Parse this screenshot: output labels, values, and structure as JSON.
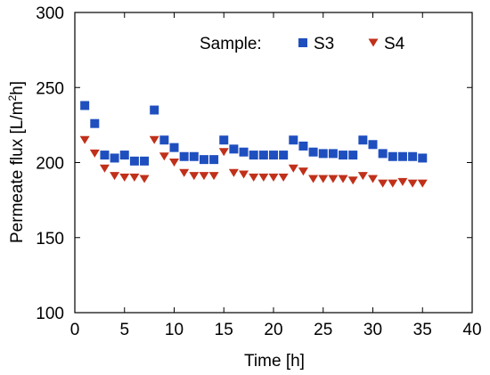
{
  "chart_data": {
    "type": "scatter",
    "xlabel": "Time [h]",
    "ylabel_prefix": "Permeate flux [L/m",
    "ylabel_sup": "2",
    "ylabel_suffix": "h]",
    "xlim": [
      0,
      40
    ],
    "ylim": [
      100,
      300
    ],
    "xticks": [
      0,
      5,
      10,
      15,
      20,
      25,
      30,
      35,
      40
    ],
    "yticks": [
      100,
      150,
      200,
      250,
      300
    ],
    "grid": false,
    "legend": {
      "title": "Sample:",
      "placement": "top-right"
    },
    "series": [
      {
        "name": "S3",
        "marker": "square",
        "color": "#1f4fbf",
        "x": [
          1,
          2,
          3,
          4,
          5,
          6,
          7,
          8,
          9,
          10,
          11,
          12,
          13,
          14,
          15,
          16,
          17,
          18,
          19,
          20,
          21,
          22,
          23,
          24,
          25,
          26,
          27,
          28,
          29,
          30,
          31,
          32,
          33,
          34,
          35
        ],
        "y": [
          238,
          226,
          205,
          203,
          205,
          201,
          201,
          235,
          215,
          210,
          204,
          204,
          202,
          202,
          215,
          209,
          207,
          205,
          205,
          205,
          205,
          215,
          211,
          207,
          206,
          206,
          205,
          205,
          215,
          212,
          206,
          204,
          204,
          204,
          203
        ]
      },
      {
        "name": "S4",
        "marker": "triangle-down",
        "color": "#c0301a",
        "x": [
          1,
          2,
          3,
          4,
          5,
          6,
          7,
          8,
          9,
          10,
          11,
          12,
          13,
          14,
          15,
          16,
          17,
          18,
          19,
          20,
          21,
          22,
          23,
          24,
          25,
          26,
          27,
          28,
          29,
          30,
          31,
          32,
          33,
          34,
          35
        ],
        "y": [
          215,
          206,
          196,
          191,
          190,
          190,
          189,
          215,
          204,
          200,
          193,
          191,
          191,
          191,
          207,
          193,
          192,
          190,
          190,
          190,
          190,
          196,
          194,
          189,
          189,
          189,
          189,
          188,
          191,
          189,
          186,
          186,
          187,
          186,
          186
        ]
      }
    ]
  }
}
